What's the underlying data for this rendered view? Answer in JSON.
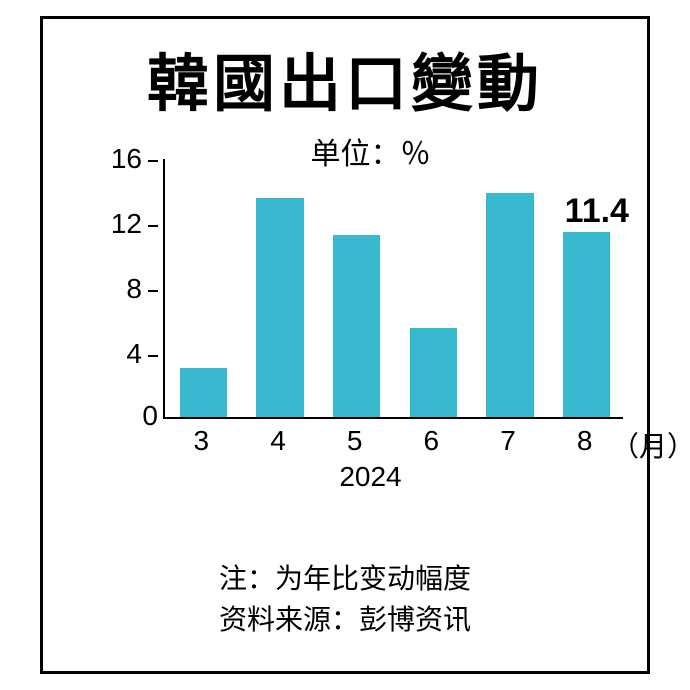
{
  "title": "韓國出口變動",
  "chart": {
    "type": "bar",
    "unit_label": "单位：％",
    "categories": [
      "3",
      "4",
      "5",
      "6",
      "7",
      "8"
    ],
    "values": [
      3.0,
      13.5,
      11.2,
      5.5,
      13.8,
      11.4
    ],
    "bar_color": "#38b9cf",
    "ylim": [
      0,
      16
    ],
    "yticks": [
      0,
      4,
      8,
      12,
      16
    ],
    "bar_width_ratio": 0.62,
    "x_axis_suffix": "（月）",
    "year_label": "2024",
    "callout": {
      "index": 5,
      "text": "11.4"
    }
  },
  "notes": {
    "line1": "注：为年比变动幅度",
    "line2": "资料来源：彭博资讯"
  }
}
